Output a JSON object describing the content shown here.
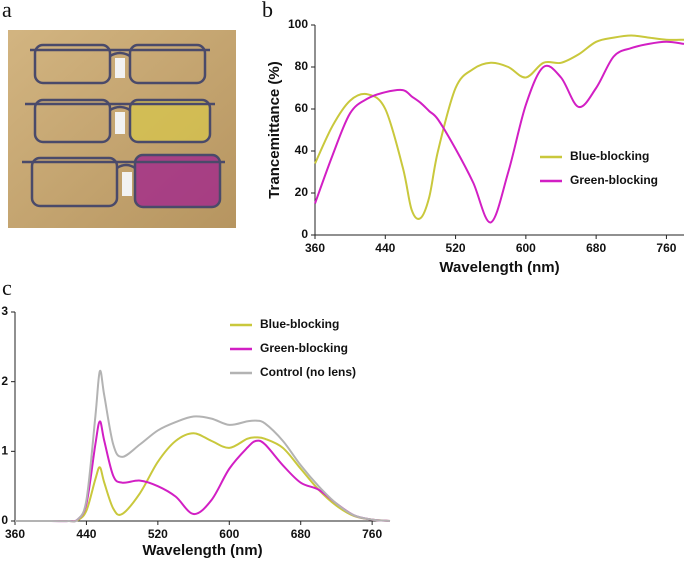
{
  "photo": {
    "label": "a"
  },
  "chart_data": [
    {
      "type": "line",
      "label": "b",
      "xlabel": "Wavelength (nm)",
      "ylabel": "Trancemittance (%)",
      "xlim": [
        360,
        780
      ],
      "xticks": [
        360,
        440,
        520,
        600,
        680,
        760
      ],
      "ylim": [
        0,
        100
      ],
      "yticks": [
        0,
        20,
        40,
        60,
        80,
        100
      ],
      "x": [
        360,
        380,
        400,
        420,
        440,
        460,
        470,
        480,
        490,
        500,
        520,
        540,
        560,
        580,
        600,
        620,
        640,
        660,
        680,
        700,
        720,
        740,
        760,
        780
      ],
      "series": [
        {
          "name": "Blue-blocking",
          "color": "#c9c83c",
          "values": [
            34,
            52,
            64,
            67,
            60,
            32,
            12,
            8,
            18,
            40,
            70,
            79,
            82,
            80,
            75,
            82,
            82,
            86,
            92,
            94,
            95,
            94,
            93,
            93
          ]
        },
        {
          "name": "Green-blocking",
          "color": "#d21fc4",
          "values": [
            15,
            38,
            58,
            65,
            68,
            69,
            66,
            63,
            59,
            55,
            41,
            25,
            6,
            30,
            62,
            80,
            75,
            61,
            70,
            85,
            89,
            91,
            92,
            91
          ]
        }
      ]
    },
    {
      "type": "line",
      "label": "c",
      "xlabel": "Wavelength (nm)",
      "xlim": [
        360,
        780
      ],
      "xticks": [
        360,
        440,
        520,
        600,
        680,
        760
      ],
      "ylim": [
        0,
        3
      ],
      "yticks": [
        0,
        1,
        2,
        3
      ],
      "x": [
        360,
        400,
        420,
        430,
        440,
        450,
        455,
        460,
        470,
        480,
        500,
        520,
        540,
        560,
        580,
        600,
        620,
        630,
        640,
        660,
        680,
        700,
        720,
        740,
        760,
        780
      ],
      "series": [
        {
          "name": "Blue-blocking",
          "color": "#c9c83c",
          "values": [
            0,
            0,
            0,
            0.01,
            0.15,
            0.6,
            0.77,
            0.55,
            0.18,
            0.1,
            0.4,
            0.85,
            1.15,
            1.26,
            1.15,
            1.05,
            1.18,
            1.2,
            1.18,
            1.05,
            0.75,
            0.45,
            0.22,
            0.07,
            0.02,
            0
          ]
        },
        {
          "name": "Green-blocking",
          "color": "#d21fc4",
          "values": [
            0,
            0,
            0,
            0.02,
            0.25,
            1.1,
            1.43,
            1.15,
            0.65,
            0.55,
            0.58,
            0.5,
            0.35,
            0.1,
            0.3,
            0.75,
            1.05,
            1.15,
            1.1,
            0.8,
            0.55,
            0.45,
            0.25,
            0.08,
            0.02,
            0
          ]
        },
        {
          "name": "Control (no lens)",
          "color": "#b3b3b3",
          "values": [
            0,
            0,
            0,
            0.02,
            0.3,
            1.5,
            2.15,
            1.8,
            1.1,
            0.92,
            1.1,
            1.3,
            1.42,
            1.5,
            1.47,
            1.38,
            1.43,
            1.44,
            1.4,
            1.15,
            0.8,
            0.5,
            0.25,
            0.08,
            0.02,
            0
          ]
        }
      ]
    }
  ]
}
